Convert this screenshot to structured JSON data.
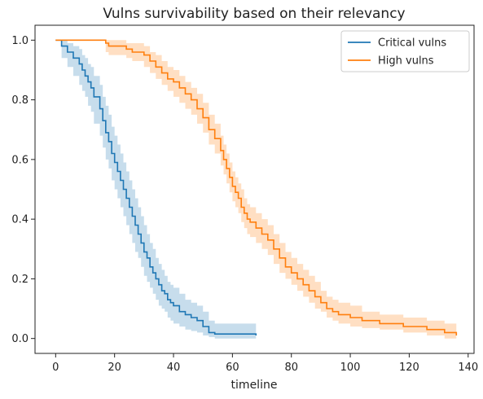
{
  "chart_data": {
    "type": "line",
    "title": "Vulns survivability based on their relevancy",
    "xlabel": "timeline",
    "ylabel": "",
    "xlim": [
      -7,
      142
    ],
    "ylim": [
      -0.05,
      1.05
    ],
    "xticks": [
      0,
      20,
      40,
      60,
      80,
      100,
      120,
      140
    ],
    "yticks": [
      0.0,
      0.2,
      0.4,
      0.6,
      0.8,
      1.0
    ],
    "xtick_labels": [
      "0",
      "20",
      "40",
      "60",
      "80",
      "100",
      "120",
      "140"
    ],
    "ytick_labels": [
      "0.0",
      "0.2",
      "0.4",
      "0.6",
      "0.8",
      "1.0"
    ],
    "legend": {
      "position": "top-right"
    },
    "grid": false,
    "series": [
      {
        "name": "Critical vulns",
        "color": "#1f77b4",
        "ci_color": "#1f77b4",
        "x": [
          0,
          2,
          4,
          6,
          8,
          9,
          10,
          11,
          12,
          13,
          15,
          16,
          17,
          18,
          19,
          20,
          21,
          22,
          23,
          24,
          25,
          26,
          27,
          28,
          29,
          30,
          31,
          32,
          33,
          34,
          35,
          36,
          37,
          38,
          39,
          40,
          42,
          44,
          46,
          48,
          50,
          52,
          54,
          68
        ],
        "y": [
          1.0,
          0.98,
          0.96,
          0.94,
          0.92,
          0.9,
          0.88,
          0.86,
          0.84,
          0.81,
          0.77,
          0.73,
          0.69,
          0.66,
          0.62,
          0.59,
          0.56,
          0.53,
          0.5,
          0.47,
          0.44,
          0.41,
          0.38,
          0.35,
          0.32,
          0.29,
          0.27,
          0.24,
          0.22,
          0.2,
          0.18,
          0.16,
          0.15,
          0.13,
          0.12,
          0.11,
          0.09,
          0.08,
          0.07,
          0.06,
          0.04,
          0.02,
          0.015,
          0.01
        ],
        "ci_lower": [
          1.0,
          0.94,
          0.91,
          0.88,
          0.85,
          0.83,
          0.81,
          0.78,
          0.76,
          0.72,
          0.68,
          0.64,
          0.6,
          0.57,
          0.53,
          0.5,
          0.47,
          0.44,
          0.41,
          0.38,
          0.35,
          0.32,
          0.29,
          0.27,
          0.24,
          0.21,
          0.19,
          0.17,
          0.15,
          0.13,
          0.11,
          0.1,
          0.09,
          0.07,
          0.06,
          0.05,
          0.04,
          0.03,
          0.025,
          0.02,
          0.01,
          0.005,
          0.0,
          0.0
        ],
        "ci_upper": [
          1.0,
          1.0,
          0.99,
          0.98,
          0.97,
          0.95,
          0.94,
          0.92,
          0.91,
          0.88,
          0.85,
          0.81,
          0.78,
          0.75,
          0.71,
          0.68,
          0.65,
          0.62,
          0.59,
          0.56,
          0.53,
          0.5,
          0.47,
          0.44,
          0.41,
          0.38,
          0.35,
          0.32,
          0.3,
          0.27,
          0.25,
          0.23,
          0.21,
          0.19,
          0.18,
          0.17,
          0.15,
          0.13,
          0.12,
          0.11,
          0.09,
          0.06,
          0.05,
          0.05
        ]
      },
      {
        "name": "High vulns",
        "color": "#ff7f0e",
        "ci_color": "#ff7f0e",
        "x": [
          0,
          17,
          18,
          20,
          24,
          26,
          30,
          32,
          34,
          36,
          38,
          40,
          42,
          44,
          46,
          48,
          50,
          52,
          54,
          56,
          57,
          58,
          59,
          60,
          61,
          62,
          63,
          64,
          65,
          66,
          68,
          70,
          72,
          74,
          76,
          78,
          80,
          82,
          84,
          86,
          88,
          90,
          92,
          94,
          96,
          100,
          104,
          110,
          118,
          126,
          132,
          136
        ],
        "y": [
          1.0,
          0.99,
          0.98,
          0.98,
          0.97,
          0.96,
          0.95,
          0.93,
          0.91,
          0.89,
          0.87,
          0.86,
          0.84,
          0.82,
          0.8,
          0.77,
          0.74,
          0.7,
          0.67,
          0.63,
          0.6,
          0.57,
          0.54,
          0.51,
          0.49,
          0.47,
          0.44,
          0.42,
          0.4,
          0.39,
          0.37,
          0.35,
          0.33,
          0.3,
          0.27,
          0.24,
          0.22,
          0.2,
          0.18,
          0.16,
          0.14,
          0.12,
          0.1,
          0.09,
          0.08,
          0.07,
          0.06,
          0.05,
          0.04,
          0.03,
          0.02,
          0.01
        ],
        "ci_lower": [
          1.0,
          0.96,
          0.95,
          0.95,
          0.94,
          0.93,
          0.91,
          0.89,
          0.87,
          0.85,
          0.83,
          0.81,
          0.79,
          0.77,
          0.75,
          0.72,
          0.69,
          0.65,
          0.62,
          0.58,
          0.55,
          0.52,
          0.49,
          0.46,
          0.44,
          0.42,
          0.39,
          0.37,
          0.35,
          0.34,
          0.32,
          0.3,
          0.28,
          0.25,
          0.22,
          0.2,
          0.18,
          0.16,
          0.14,
          0.12,
          0.1,
          0.09,
          0.07,
          0.06,
          0.05,
          0.04,
          0.035,
          0.03,
          0.02,
          0.01,
          0.0,
          0.0
        ],
        "ci_upper": [
          1.0,
          1.0,
          1.0,
          1.0,
          0.99,
          0.99,
          0.98,
          0.96,
          0.95,
          0.93,
          0.91,
          0.9,
          0.88,
          0.86,
          0.84,
          0.82,
          0.79,
          0.75,
          0.72,
          0.68,
          0.65,
          0.62,
          0.59,
          0.56,
          0.54,
          0.52,
          0.5,
          0.47,
          0.45,
          0.44,
          0.42,
          0.4,
          0.38,
          0.35,
          0.32,
          0.29,
          0.27,
          0.25,
          0.23,
          0.21,
          0.19,
          0.16,
          0.14,
          0.13,
          0.12,
          0.11,
          0.09,
          0.08,
          0.07,
          0.06,
          0.05,
          0.04
        ]
      }
    ]
  }
}
